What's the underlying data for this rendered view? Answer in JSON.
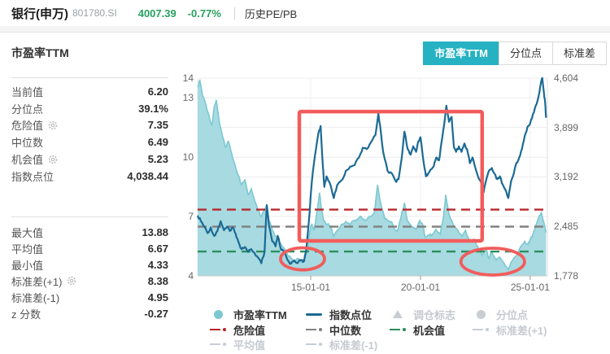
{
  "header": {
    "name": "银行(申万)",
    "code": "801780.SI",
    "price": "4007.39",
    "change": "-0.77%",
    "nav": "历史PE/PB",
    "price_color": "#27a05e"
  },
  "section_title": "市盈率TTM",
  "tabs": [
    {
      "key": "pe-ttm",
      "label": "市盈率TTM",
      "active": true
    },
    {
      "key": "percentile",
      "label": "分位点",
      "active": false
    },
    {
      "key": "stddev",
      "label": "标准差",
      "active": false
    }
  ],
  "tab_active_color": "#26b2c2",
  "stats": {
    "block1": [
      {
        "key": "current-value",
        "label": "当前值",
        "value": "6.20",
        "gear": false
      },
      {
        "key": "percentile",
        "label": "分位点",
        "value": "39.1%",
        "gear": false
      },
      {
        "key": "danger-value",
        "label": "危险值",
        "value": "7.35",
        "gear": true
      },
      {
        "key": "median",
        "label": "中位数",
        "value": "6.49",
        "gear": false
      },
      {
        "key": "opportunity-value",
        "label": "机会值",
        "value": "5.23",
        "gear": true
      },
      {
        "key": "index-level",
        "label": "指数点位",
        "value": "4,038.44",
        "gear": false
      }
    ],
    "block2": [
      {
        "key": "max-value",
        "label": "最大值",
        "value": "13.88",
        "gear": false
      },
      {
        "key": "mean-value",
        "label": "平均值",
        "value": "6.67",
        "gear": false
      },
      {
        "key": "min-value",
        "label": "最小值",
        "value": "4.33",
        "gear": false
      },
      {
        "key": "stddev-plus1",
        "label": "标准差(+1)",
        "value": "8.38",
        "gear": true
      },
      {
        "key": "stddev-minus1",
        "label": "标准差(-1)",
        "value": "4.95",
        "gear": false
      },
      {
        "key": "z-score",
        "label": "z 分数",
        "value": "-0.27",
        "gear": false
      }
    ]
  },
  "chart_data": {
    "type": "line",
    "x_axis": {
      "domain": [
        2009.85,
        2025.78
      ],
      "ticks": [
        {
          "year": 2015.0,
          "label": "15-01-01"
        },
        {
          "year": 2020.0,
          "label": "20-01-01"
        },
        {
          "year": 2025.0,
          "label": "25-01-01"
        }
      ]
    },
    "y_left": {
      "name": "市盈率TTM",
      "domain": [
        4,
        14
      ],
      "tick_values": [
        14,
        13,
        10,
        7,
        4
      ],
      "grid_values": [
        13,
        10,
        7
      ]
    },
    "y_right": {
      "name": "指数点位",
      "domain": [
        1778,
        4604
      ],
      "tick_values": [
        4604,
        3899,
        3192,
        2485,
        1778
      ],
      "tick_labels": [
        "4,604",
        "3,899",
        "3,192",
        "2,485",
        "1,778"
      ],
      "grid_values": [
        3899,
        3192,
        2485
      ]
    },
    "series": [
      {
        "name": "市盈率TTM",
        "render": "area",
        "axis": "left",
        "line_color": "#7cc8d2",
        "fill_color": "#a7dae1",
        "x": [
          2009.85,
          2009.95,
          2010.08,
          2010.22,
          2010.36,
          2010.5,
          2010.6,
          2010.7,
          2010.85,
          2011.0,
          2011.12,
          2011.25,
          2011.4,
          2011.55,
          2011.7,
          2011.85,
          2012.0,
          2012.15,
          2012.3,
          2012.45,
          2012.6,
          2012.75,
          2012.9,
          2013.0,
          2013.1,
          2013.25,
          2013.4,
          2013.55,
          2013.7,
          2013.85,
          2014.0,
          2014.15,
          2014.3,
          2014.45,
          2014.6,
          2014.75,
          2014.85,
          2014.95,
          2015.05,
          2015.15,
          2015.25,
          2015.4,
          2015.5,
          2015.6,
          2015.75,
          2015.9,
          2016.05,
          2016.2,
          2016.4,
          2016.6,
          2016.8,
          2017.0,
          2017.15,
          2017.3,
          2017.5,
          2017.7,
          2017.9,
          2018.05,
          2018.2,
          2018.35,
          2018.5,
          2018.65,
          2018.8,
          2018.95,
          2019.1,
          2019.27,
          2019.4,
          2019.6,
          2019.8,
          2019.97,
          2020.1,
          2020.22,
          2020.4,
          2020.55,
          2020.7,
          2020.9,
          2021.05,
          2021.15,
          2021.3,
          2021.5,
          2021.7,
          2021.9,
          2022.05,
          2022.25,
          2022.45,
          2022.6,
          2022.8,
          2023.0,
          2023.12,
          2023.25,
          2023.45,
          2023.6,
          2023.8,
          2024.0,
          2024.2,
          2024.4,
          2024.55,
          2024.75,
          2024.9,
          2025.0,
          2025.12,
          2025.25,
          2025.38,
          2025.5,
          2025.62,
          2025.72
        ],
        "y": [
          13.55,
          13.88,
          13.1,
          12.7,
          12.15,
          11.6,
          12.5,
          12.9,
          11.7,
          11.0,
          10.5,
          10.8,
          10.2,
          9.6,
          9.1,
          8.6,
          8.85,
          8.1,
          8.4,
          7.8,
          7.3,
          7.0,
          7.3,
          7.55,
          6.8,
          6.3,
          6.0,
          5.7,
          5.5,
          5.3,
          5.0,
          4.85,
          4.75,
          4.85,
          4.7,
          4.9,
          5.3,
          6.2,
          6.6,
          6.3,
          7.0,
          8.2,
          7.3,
          6.8,
          6.6,
          6.5,
          6.0,
          6.3,
          6.6,
          6.75,
          6.6,
          6.8,
          6.9,
          7.0,
          6.8,
          7.0,
          7.2,
          8.6,
          7.6,
          7.0,
          6.8,
          6.75,
          6.4,
          6.25,
          6.9,
          7.7,
          6.8,
          6.5,
          6.35,
          6.8,
          6.6,
          5.95,
          6.05,
          6.1,
          6.35,
          6.1,
          7.0,
          8.1,
          7.1,
          6.55,
          6.3,
          6.0,
          6.3,
          5.75,
          5.85,
          5.5,
          5.05,
          5.35,
          4.9,
          5.2,
          4.8,
          4.95,
          4.65,
          4.33,
          4.8,
          5.05,
          5.45,
          5.75,
          5.6,
          5.85,
          6.1,
          6.55,
          6.95,
          7.2,
          6.7,
          6.2
        ]
      },
      {
        "name": "指数点位",
        "render": "line",
        "axis": "right",
        "line_color": "#1b6a94",
        "x": [
          2009.85,
          2010.0,
          2010.15,
          2010.3,
          2010.45,
          2010.6,
          2010.75,
          2010.9,
          2011.05,
          2011.2,
          2011.32,
          2011.45,
          2011.58,
          2011.7,
          2011.85,
          2012.0,
          2012.15,
          2012.3,
          2012.45,
          2012.6,
          2012.75,
          2012.9,
          2013.0,
          2013.1,
          2013.25,
          2013.4,
          2013.5,
          2013.65,
          2013.8,
          2013.95,
          2014.1,
          2014.25,
          2014.4,
          2014.55,
          2014.7,
          2014.8,
          2014.9,
          2015.05,
          2015.2,
          2015.35,
          2015.45,
          2015.55,
          2015.62,
          2015.72,
          2015.85,
          2016.05,
          2016.2,
          2016.45,
          2016.6,
          2016.8,
          2017.0,
          2017.2,
          2017.37,
          2017.55,
          2017.75,
          2017.95,
          2018.08,
          2018.2,
          2018.3,
          2018.5,
          2018.7,
          2018.9,
          2019.0,
          2019.15,
          2019.27,
          2019.42,
          2019.55,
          2019.67,
          2019.8,
          2019.9,
          2020.0,
          2020.15,
          2020.25,
          2020.35,
          2020.47,
          2020.6,
          2020.72,
          2020.85,
          2020.95,
          2021.08,
          2021.18,
          2021.3,
          2021.42,
          2021.52,
          2021.62,
          2021.75,
          2021.87,
          2022.0,
          2022.12,
          2022.25,
          2022.37,
          2022.5,
          2022.62,
          2022.75,
          2022.87,
          2023.0,
          2023.12,
          2023.25,
          2023.37,
          2023.5,
          2023.62,
          2023.75,
          2023.87,
          2024.0,
          2024.12,
          2024.25,
          2024.37,
          2024.5,
          2024.62,
          2024.75,
          2024.87,
          2025.0,
          2025.12,
          2025.25,
          2025.37,
          2025.5,
          2025.55,
          2025.62,
          2025.68,
          2025.72
        ],
        "y": [
          2640,
          2560,
          2480,
          2390,
          2470,
          2350,
          2420,
          2560,
          2430,
          2480,
          2420,
          2470,
          2380,
          2270,
          2160,
          2190,
          2120,
          2160,
          2100,
          2040,
          1960,
          2120,
          2790,
          2500,
          2270,
          2200,
          2350,
          2150,
          2120,
          2000,
          1950,
          2000,
          1960,
          2000,
          1990,
          2160,
          2500,
          3120,
          3510,
          3820,
          3920,
          3360,
          3050,
          3200,
          3120,
          2890,
          3070,
          3160,
          3280,
          3340,
          3360,
          3470,
          3610,
          3590,
          3690,
          3790,
          4100,
          3820,
          3550,
          3280,
          3240,
          3120,
          3160,
          3470,
          3840,
          3590,
          3510,
          3630,
          3550,
          3700,
          3760,
          3390,
          3200,
          3240,
          3300,
          3340,
          3470,
          3430,
          3670,
          3940,
          4210,
          3980,
          4050,
          3630,
          3550,
          3630,
          3550,
          3670,
          3590,
          3390,
          3470,
          3320,
          3200,
          3120,
          2970,
          3160,
          3280,
          3320,
          3240,
          3160,
          3200,
          3080,
          3010,
          2890,
          3120,
          3240,
          3390,
          3470,
          3590,
          3780,
          3900,
          3960,
          4090,
          4210,
          4330,
          4560,
          4604,
          4400,
          4250,
          4038
        ]
      }
    ],
    "ref_lines": [
      {
        "key": "danger-line",
        "name": "危险值",
        "value": 7.35,
        "color": "#b7282d"
      },
      {
        "key": "median-line",
        "name": "中位数",
        "value": 6.49,
        "color": "#828282"
      },
      {
        "key": "opportunity-line",
        "name": "机会值",
        "value": 5.23,
        "color": "#2c8f5c"
      }
    ],
    "annotations": {
      "color": "#f25c5c",
      "rect": {
        "x1": 2014.48,
        "x2": 2022.81,
        "y_top": 12.31,
        "y_bottom": 5.77
      },
      "ellipses": [
        {
          "cx": 2014.63,
          "cy": 4.86,
          "rx": 1.0,
          "ry": 0.56
        },
        {
          "cx": 2023.29,
          "cy": 4.72,
          "rx": 1.45,
          "ry": 0.68
        }
      ]
    },
    "legend": {
      "rows": [
        [
          {
            "key": "pe-ttm",
            "label": "市盈率TTM",
            "marker": "circle",
            "color": "#7cc8d2",
            "active": true
          },
          {
            "key": "index-level",
            "label": "指数点位",
            "marker": "line",
            "color": "#1b6a94",
            "active": true
          },
          {
            "key": "rebalance-marker",
            "label": "调仓标志",
            "marker": "triangle",
            "color": "#c8cdd4",
            "active": false
          },
          {
            "key": "percentile",
            "label": "分位点",
            "marker": "circle",
            "color": "#c8cdd4",
            "active": false
          }
        ],
        [
          {
            "key": "danger-value",
            "label": "危险值",
            "marker": "dashdot",
            "color": "#b7282d",
            "active": true
          },
          {
            "key": "median",
            "label": "中位数",
            "marker": "dashdot",
            "color": "#828282",
            "active": true
          },
          {
            "key": "opportunity-value",
            "label": "机会值",
            "marker": "dashdot",
            "color": "#2c8f5c",
            "active": true
          },
          {
            "key": "stddev-plus1",
            "label": "标准差(+1)",
            "marker": "dashdot",
            "color": "#c8cdd4",
            "active": false
          }
        ],
        [
          {
            "key": "mean",
            "label": "平均值",
            "marker": "dashdot",
            "color": "#c8cdd4",
            "active": false
          },
          {
            "key": "stddev-minus1",
            "label": "标准差(-1)",
            "marker": "dashdot",
            "color": "#c8cdd4",
            "active": false
          }
        ]
      ]
    }
  }
}
